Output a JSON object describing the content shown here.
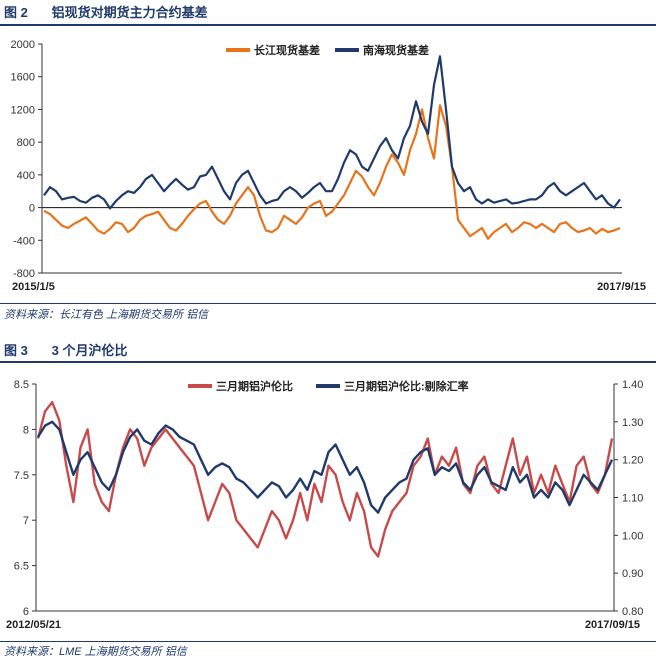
{
  "figure2": {
    "number": "图 2",
    "title": "铝现货对期货主力合约基差",
    "source": "资料来源：长江有色   上海期货交易所   铝信"
  },
  "figure3": {
    "number": "图 3",
    "title": "3 个月沪伦比",
    "source": "资料来源：LME   上海期货交易所   铝信"
  },
  "chart_data": [
    {
      "type": "line",
      "title": "",
      "xlabel": "",
      "ylabel": "",
      "x_start_label": "2015/1/5",
      "x_end_label": "2017/9/15",
      "ylim": [
        -800,
        2000
      ],
      "yticks": [
        -800,
        -400,
        0,
        400,
        800,
        1200,
        1600,
        2000
      ],
      "legend_position": "top-center",
      "grid": false,
      "series": [
        {
          "name": "长江现货基差",
          "color": "#e8731a",
          "values": [
            -40,
            -80,
            -150,
            -220,
            -250,
            -200,
            -160,
            -120,
            -200,
            -280,
            -320,
            -260,
            -180,
            -200,
            -300,
            -250,
            -150,
            -100,
            -80,
            -50,
            -150,
            -250,
            -280,
            -200,
            -100,
            -20,
            50,
            80,
            -50,
            -150,
            -200,
            -100,
            50,
            150,
            250,
            150,
            -100,
            -280,
            -300,
            -250,
            -100,
            -150,
            -200,
            -120,
            0,
            50,
            80,
            -100,
            -50,
            50,
            150,
            300,
            450,
            380,
            250,
            150,
            300,
            500,
            650,
            550,
            400,
            700,
            900,
            1200,
            850,
            600,
            1250,
            1000,
            500,
            -150,
            -250,
            -350,
            -300,
            -250,
            -380,
            -300,
            -250,
            -200,
            -300,
            -250,
            -180,
            -200,
            -250,
            -200,
            -250,
            -300,
            -200,
            -180,
            -250,
            -300,
            -280,
            -250,
            -320,
            -260,
            -300,
            -280,
            -250
          ]
        },
        {
          "name": "南海现货基差",
          "color": "#1f3a6b",
          "values": [
            150,
            250,
            200,
            100,
            120,
            130,
            80,
            60,
            120,
            150,
            100,
            -10,
            80,
            150,
            200,
            180,
            250,
            350,
            400,
            300,
            200,
            280,
            350,
            280,
            220,
            250,
            380,
            400,
            500,
            350,
            200,
            100,
            300,
            400,
            450,
            300,
            150,
            50,
            80,
            100,
            200,
            250,
            200,
            120,
            180,
            250,
            300,
            200,
            200,
            350,
            550,
            700,
            650,
            500,
            450,
            600,
            750,
            850,
            700,
            600,
            850,
            1000,
            1300,
            1050,
            900,
            1500,
            1850,
            1200,
            500,
            300,
            200,
            250,
            100,
            50,
            100,
            60,
            80,
            100,
            50,
            60,
            80,
            100,
            100,
            150,
            250,
            300,
            200,
            150,
            200,
            250,
            300,
            200,
            100,
            150,
            50,
            0,
            100
          ]
        }
      ]
    },
    {
      "type": "line",
      "title": "",
      "xlabel": "",
      "ylabel": "",
      "x_start_label": "2012/05/21",
      "x_end_label": "2017/09/15",
      "ylim_left": [
        6,
        8.5
      ],
      "yticks_left": [
        6,
        6.5,
        7,
        7.5,
        8,
        8.5
      ],
      "ylim_right": [
        0.8,
        1.4
      ],
      "yticks_right": [
        "0.80",
        "0.90",
        "1.00",
        "1.10",
        "1.20",
        "1.30",
        "1.40"
      ],
      "legend_position": "top-center",
      "grid": false,
      "series": [
        {
          "name": "三月期铝沪伦比",
          "axis": "left",
          "color": "#c84b4b",
          "values": [
            7.9,
            8.2,
            8.3,
            8.1,
            7.6,
            7.2,
            7.8,
            8.0,
            7.4,
            7.2,
            7.1,
            7.5,
            7.8,
            8.0,
            7.9,
            7.6,
            7.8,
            7.9,
            8.0,
            7.9,
            7.8,
            7.7,
            7.6,
            7.3,
            7.0,
            7.2,
            7.4,
            7.3,
            7.0,
            6.9,
            6.8,
            6.7,
            6.9,
            7.1,
            7.0,
            6.8,
            7.0,
            7.3,
            7.0,
            7.4,
            7.2,
            7.6,
            7.5,
            7.2,
            7.0,
            7.3,
            7.1,
            6.7,
            6.6,
            6.9,
            7.1,
            7.2,
            7.3,
            7.6,
            7.7,
            7.9,
            7.5,
            7.7,
            7.6,
            7.8,
            7.4,
            7.3,
            7.6,
            7.7,
            7.4,
            7.3,
            7.6,
            7.9,
            7.5,
            7.7,
            7.3,
            7.5,
            7.3,
            7.6,
            7.4,
            7.2,
            7.6,
            7.7,
            7.4,
            7.3,
            7.5,
            7.9
          ]
        },
        {
          "name": "三月期铝沪伦比:剔除汇率",
          "axis": "right",
          "color": "#1f3a6b",
          "values": [
            1.26,
            1.29,
            1.3,
            1.28,
            1.22,
            1.16,
            1.2,
            1.22,
            1.18,
            1.14,
            1.12,
            1.16,
            1.22,
            1.26,
            1.28,
            1.25,
            1.24,
            1.27,
            1.29,
            1.28,
            1.26,
            1.25,
            1.24,
            1.2,
            1.16,
            1.18,
            1.19,
            1.18,
            1.15,
            1.14,
            1.12,
            1.1,
            1.12,
            1.14,
            1.13,
            1.1,
            1.12,
            1.15,
            1.12,
            1.17,
            1.16,
            1.22,
            1.24,
            1.2,
            1.16,
            1.18,
            1.14,
            1.08,
            1.06,
            1.1,
            1.12,
            1.14,
            1.15,
            1.2,
            1.22,
            1.23,
            1.16,
            1.18,
            1.17,
            1.19,
            1.14,
            1.12,
            1.16,
            1.18,
            1.14,
            1.13,
            1.12,
            1.18,
            1.14,
            1.16,
            1.1,
            1.12,
            1.1,
            1.14,
            1.12,
            1.08,
            1.12,
            1.16,
            1.14,
            1.12,
            1.16,
            1.2
          ]
        }
      ]
    }
  ]
}
